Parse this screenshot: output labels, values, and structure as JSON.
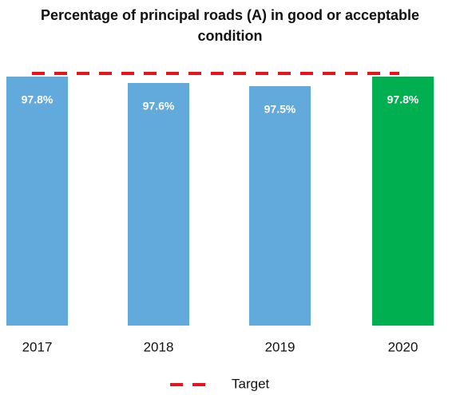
{
  "chart_data": {
    "type": "bar",
    "title": "Percentage of principal roads (A) in good or acceptable condition",
    "categories": [
      "2017",
      "2018",
      "2019",
      "2020"
    ],
    "values": [
      97.8,
      97.6,
      97.5,
      97.8
    ],
    "value_labels": [
      "97.8%",
      "97.6%",
      "97.5%",
      "97.8%"
    ],
    "colors": [
      "#62a9dc",
      "#62a9dc",
      "#62a9dc",
      "#00b050"
    ],
    "ylim": [
      90,
      100
    ],
    "target": {
      "name": "Target",
      "value": 97.9,
      "color": "#e8141b"
    }
  }
}
